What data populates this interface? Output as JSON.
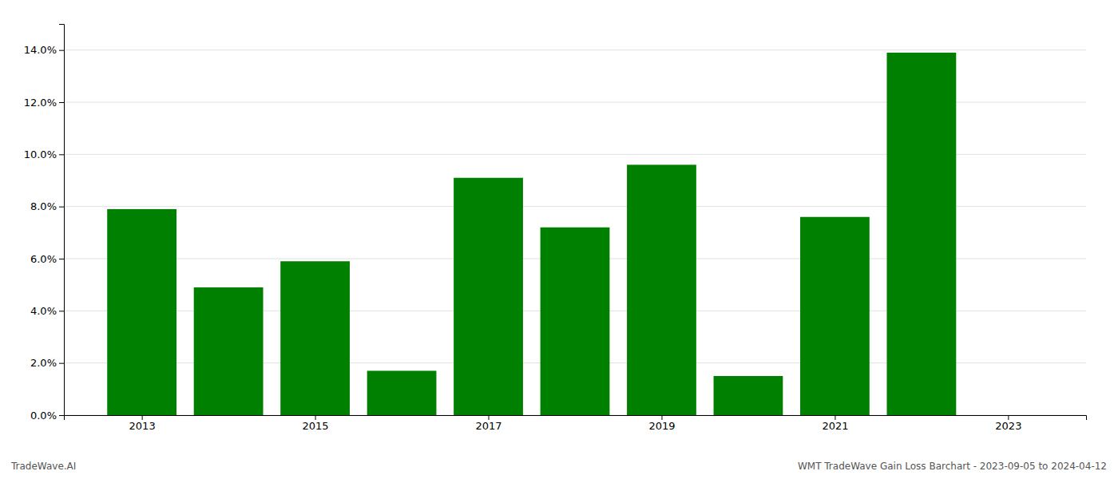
{
  "chart_data": {
    "type": "bar",
    "x": [
      2013,
      2014,
      2015,
      2016,
      2017,
      2018,
      2019,
      2020,
      2021,
      2022
    ],
    "values": [
      0.079,
      0.049,
      0.059,
      0.017,
      0.091,
      0.072,
      0.096,
      0.015,
      0.076,
      0.139
    ],
    "color": "#008000",
    "xlim": [
      2012.1,
      2023.9
    ],
    "xticks": [
      2013,
      2015,
      2017,
      2019,
      2021,
      2023
    ],
    "ylim": [
      0,
      0.15
    ],
    "yticks": [
      {
        "value": 0.0,
        "label": "0.0%"
      },
      {
        "value": 0.02,
        "label": "2.0%"
      },
      {
        "value": 0.04,
        "label": "4.0%"
      },
      {
        "value": 0.06,
        "label": "6.0%"
      },
      {
        "value": 0.08,
        "label": "8.0%"
      },
      {
        "value": 0.1,
        "label": "10.0%"
      },
      {
        "value": 0.12,
        "label": "12.0%"
      },
      {
        "value": 0.14,
        "label": "14.0%"
      }
    ],
    "grid": true,
    "annotations": [
      "TradeWave.AI",
      "WMT TradeWave Gain Loss Barchart - 2023-09-05 to 2024-04-12"
    ]
  }
}
